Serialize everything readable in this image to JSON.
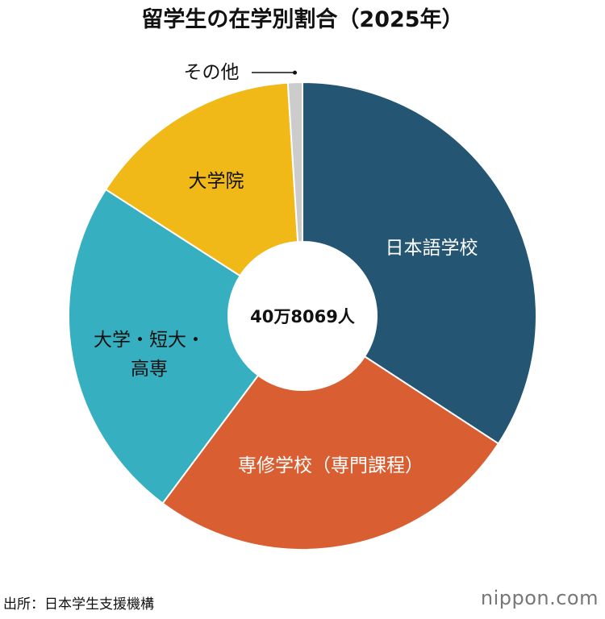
{
  "chart_data": {
    "type": "donut",
    "title": "留学生の在学別割合（2025年）",
    "categories": [
      "日本語学校",
      "専修学校（専門課程）",
      "大学・短大・高専",
      "大学院",
      "その他"
    ],
    "values": [
      34.2,
      26.0,
      23.9,
      14.9,
      1.0
    ],
    "colors": [
      "#245572",
      "#d95f32",
      "#36afc0",
      "#f0b918",
      "#cccccc"
    ],
    "label_colors": [
      "#ffffff",
      "#ffffff",
      "#111111",
      "#111111",
      "#111111"
    ],
    "center_label": "40万8069人"
  },
  "source": "出所：日本学生支援機構",
  "logo": "nippon.com"
}
